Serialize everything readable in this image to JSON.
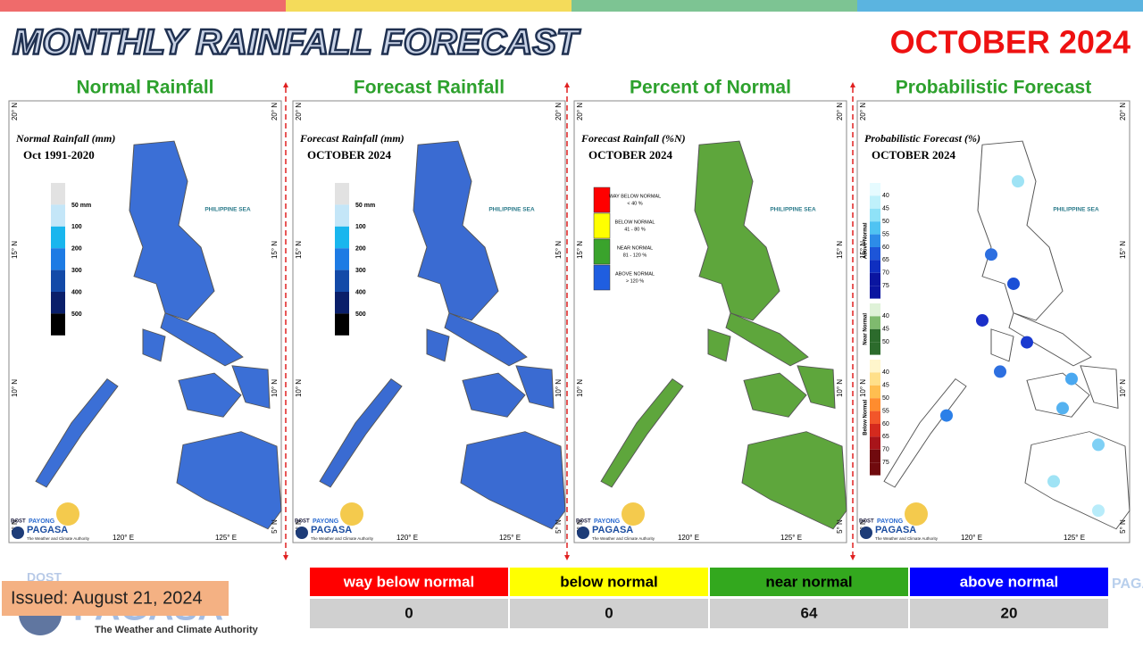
{
  "header": {
    "title": "MONTHLY RAINFALL FORECAST",
    "period": "OCTOBER 2024"
  },
  "panels": [
    {
      "title": "Normal Rainfall",
      "map_title": "Normal Rainfall (mm)",
      "map_subtitle": "Oct 1991-2020",
      "legend": [
        "50 mm",
        "100",
        "200",
        "300",
        "400",
        "500"
      ]
    },
    {
      "title": "Forecast Rainfall",
      "map_title": "Forecast Rainfall (mm)",
      "map_subtitle": "OCTOBER 2024",
      "legend": [
        "50 mm",
        "100",
        "200",
        "300",
        "400",
        "500"
      ]
    },
    {
      "title": "Percent of Normal",
      "map_title": "Forecast Rainfall (%N)",
      "map_subtitle": "OCTOBER 2024",
      "legend": [
        {
          "label": "WAY BELOW NORMAL",
          "range": "< 40 %"
        },
        {
          "label": "BELOW NORMAL",
          "range": "41 - 80 %"
        },
        {
          "label": "NEAR NORMAL",
          "range": "81 - 120 %"
        },
        {
          "label": "ABOVE NORMAL",
          "range": "> 120 %"
        }
      ]
    },
    {
      "title": "Probabilistic Forecast",
      "map_title": "Probabilistic Forecast (%)",
      "map_subtitle": "OCTOBER 2024",
      "legend_groups": [
        {
          "name": "Above Normal",
          "labels": [
            "40",
            "45",
            "50",
            "55",
            "60",
            "65",
            "70",
            "75"
          ]
        },
        {
          "name": "Near Normal",
          "labels": [
            "40",
            "45",
            "50"
          ]
        },
        {
          "name": "Below Normal",
          "labels": [
            "40",
            "45",
            "50",
            "55",
            "60",
            "65",
            "70",
            "75"
          ]
        }
      ]
    }
  ],
  "map_labels": {
    "sea": "PHILIPPINE SEA",
    "lat": [
      "20° N",
      "15° N",
      "10° N",
      "5° N"
    ],
    "lon": [
      "120° E",
      "125° E"
    ]
  },
  "logo": {
    "agency": "DOST",
    "brand": "PAYONG",
    "name": "PAGASA",
    "tagline": "The Weather and Climate Authority"
  },
  "summary": {
    "columns": [
      "way below normal",
      "below normal",
      "near normal",
      "above normal"
    ],
    "counts": [
      "0",
      "0",
      "64",
      "20"
    ]
  },
  "issued": "Issued: August 21, 2024"
}
